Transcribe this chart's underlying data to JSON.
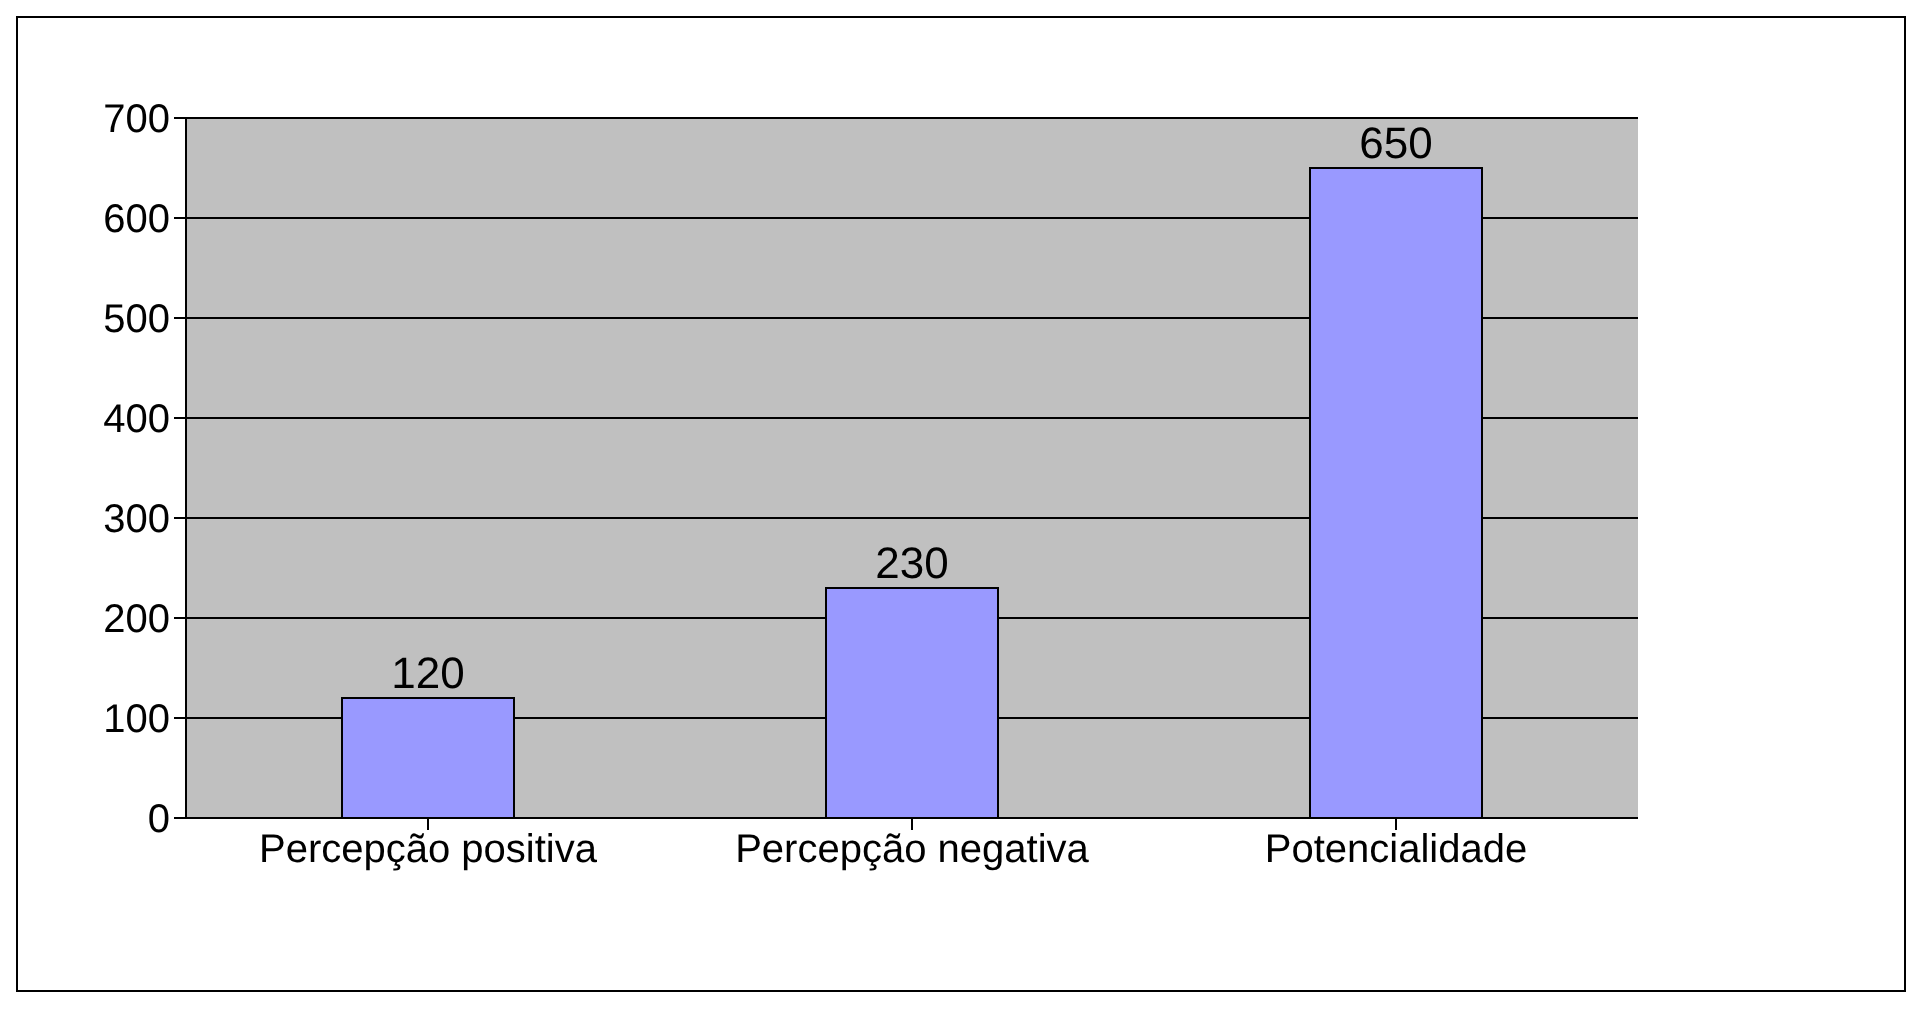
{
  "chart_data": {
    "type": "bar",
    "categories": [
      "Percepção positiva",
      "Percepção negativa",
      "Potencialidade"
    ],
    "values": [
      120,
      230,
      650
    ],
    "color": "#9999ff",
    "ylim": [
      0,
      700
    ],
    "yticks": [
      0,
      100,
      200,
      300,
      400,
      500,
      600,
      700
    ],
    "grid": "y",
    "data_labels": true
  }
}
